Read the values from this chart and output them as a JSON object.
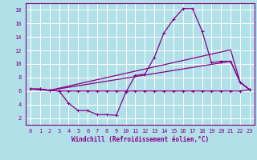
{
  "xlabel": "Windchill (Refroidissement éolien,°C)",
  "background_color": "#b2e0e8",
  "line_color": "#880088",
  "grid_color": "#ffffff",
  "xlim": [
    -0.5,
    23.5
  ],
  "ylim": [
    1,
    19
  ],
  "xticks": [
    0,
    1,
    2,
    3,
    4,
    5,
    6,
    7,
    8,
    9,
    10,
    11,
    12,
    13,
    14,
    15,
    16,
    17,
    18,
    19,
    20,
    21,
    22,
    23
  ],
  "yticks": [
    2,
    4,
    6,
    8,
    10,
    12,
    14,
    16,
    18
  ],
  "line_flat_x": [
    0,
    1,
    2,
    3,
    4,
    5,
    6,
    7,
    8,
    9,
    10,
    11,
    12,
    13,
    14,
    15,
    16,
    17,
    18,
    19,
    20,
    21,
    22,
    23
  ],
  "line_flat_y": [
    6.3,
    6.3,
    6.1,
    6.0,
    6.0,
    6.0,
    6.0,
    6.0,
    6.0,
    6.0,
    6.0,
    6.0,
    6.0,
    6.0,
    6.0,
    6.0,
    6.0,
    6.0,
    6.0,
    6.0,
    6.0,
    6.0,
    6.0,
    6.2
  ],
  "line_curve_x": [
    0,
    1,
    2,
    3,
    4,
    5,
    6,
    7,
    8,
    9,
    10,
    11,
    12,
    13,
    14,
    15,
    16,
    17,
    18,
    19,
    20,
    21,
    22,
    23
  ],
  "line_curve_y": [
    6.3,
    6.3,
    6.1,
    6.0,
    4.2,
    3.1,
    3.1,
    2.5,
    2.5,
    2.4,
    5.8,
    8.3,
    8.5,
    11.0,
    14.6,
    16.6,
    18.2,
    18.2,
    14.9,
    10.2,
    10.4,
    10.4,
    7.3,
    6.2
  ],
  "line_diag1_x": [
    0,
    2,
    21,
    22,
    23
  ],
  "line_diag1_y": [
    6.3,
    6.1,
    10.4,
    7.3,
    6.2
  ],
  "line_diag2_x": [
    0,
    2,
    21,
    22,
    23
  ],
  "line_diag2_y": [
    6.3,
    6.1,
    12.1,
    7.3,
    6.2
  ],
  "marker_size": 2.5,
  "linewidth": 0.9,
  "tick_fontsize": 5.0,
  "xlabel_fontsize": 5.5
}
